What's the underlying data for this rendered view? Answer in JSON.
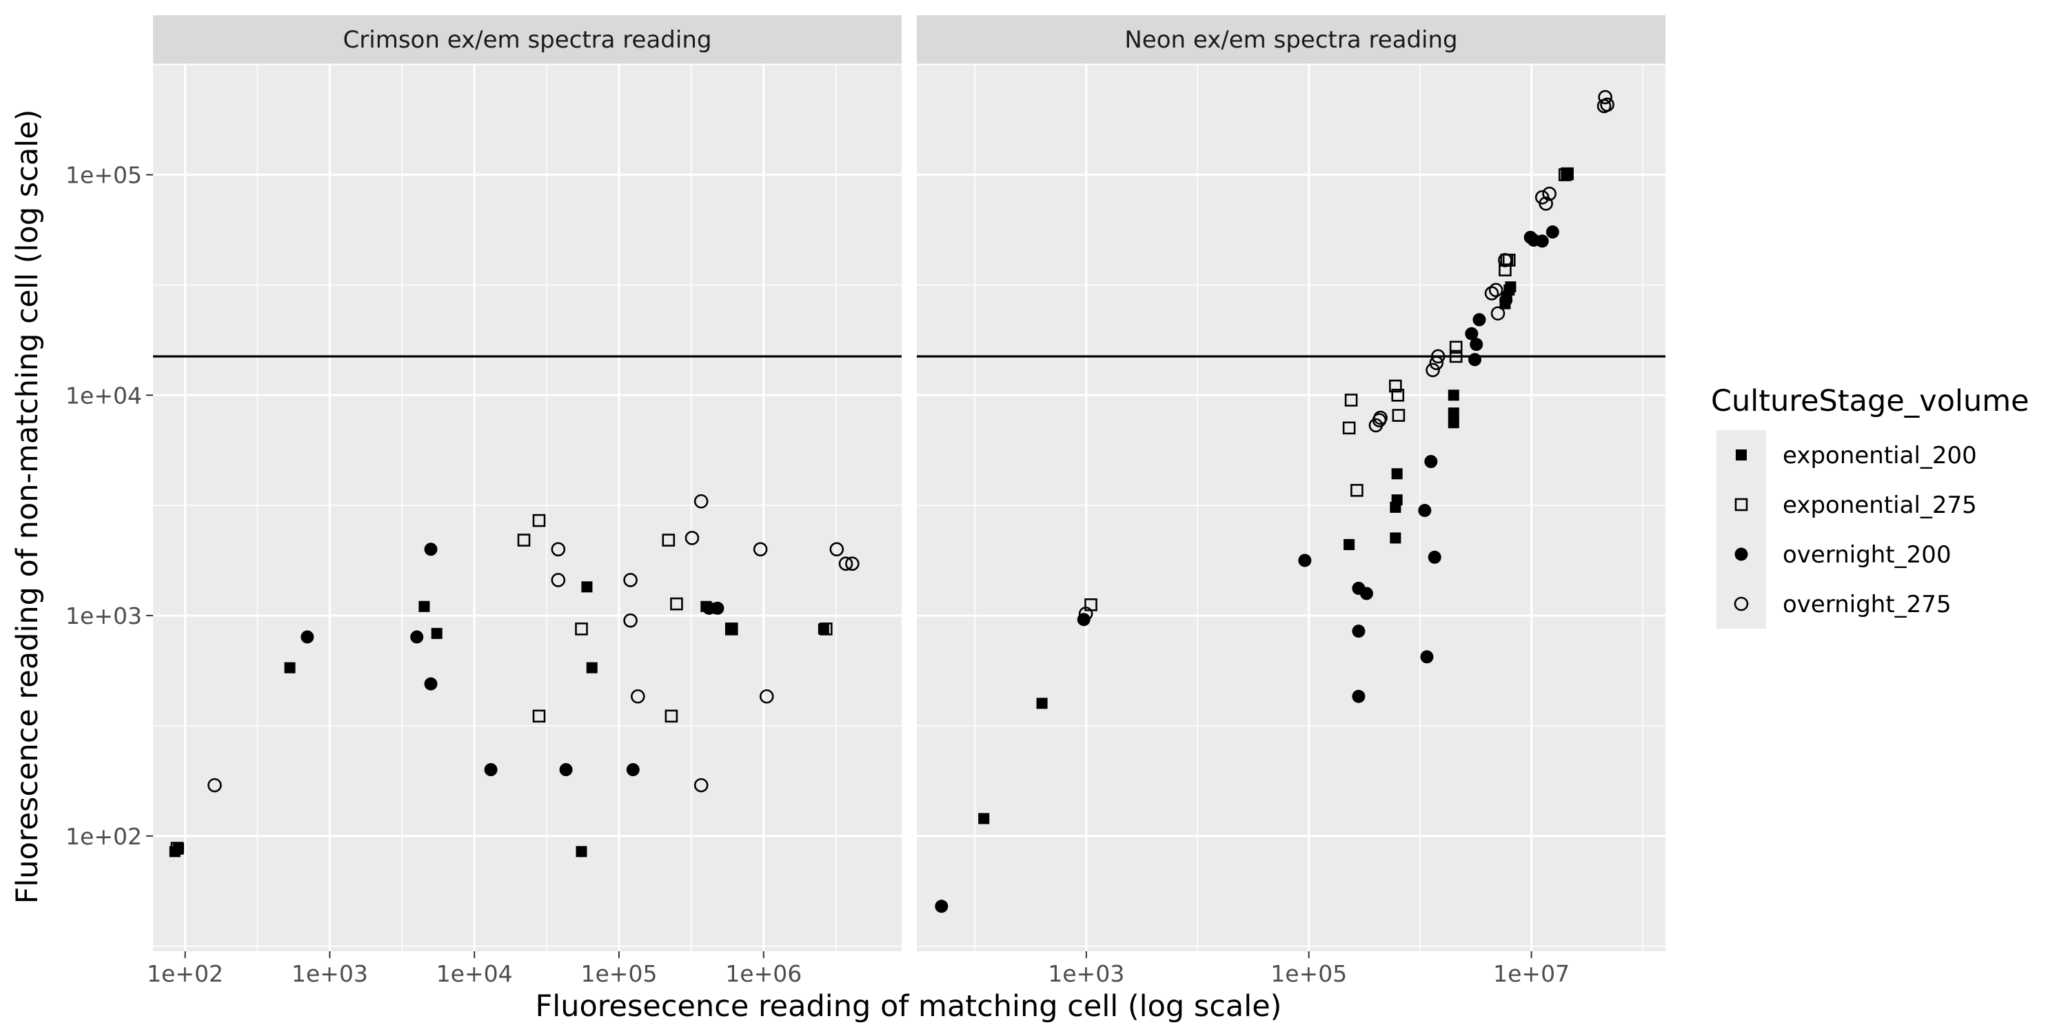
{
  "chart_data": {
    "type": "scatter",
    "xlabel": "Fluoresecence reading of matching cell (log scale)",
    "ylabel": "Fluorescence reading of non-matching cell (log scale)",
    "y_scale": "log10",
    "ylim": [
      30,
      320000
    ],
    "y_ticks": [
      100,
      1000,
      10000,
      100000
    ],
    "y_tick_labels": [
      "1e+02",
      "1e+03",
      "1e+04",
      "1e+05"
    ],
    "grid": true,
    "legend": {
      "title": "CultureStage_volume",
      "position": "right",
      "entries": [
        {
          "name": "exponential_200",
          "shape": "filled-square"
        },
        {
          "name": "exponential_275",
          "shape": "open-square"
        },
        {
          "name": "overnight_200",
          "shape": "filled-circle"
        },
        {
          "name": "overnight_275",
          "shape": "open-circle"
        }
      ]
    },
    "panels": [
      {
        "title": "Crimson ex/em spectra reading",
        "x_scale": "log10",
        "xlim": [
          60,
          9000000
        ],
        "x_ticks": [
          100,
          1000,
          10000,
          100000,
          1000000
        ],
        "x_tick_labels": [
          "1e+02",
          "1e+03",
          "1e+04",
          "1e+05",
          "1e+06"
        ],
        "hline": 15000,
        "series": [
          {
            "name": "exponential_200",
            "points": [
              [
                85,
                85
              ],
              [
                90,
                88
              ],
              [
                530,
                580
              ],
              [
                4500,
                1100
              ],
              [
                5500,
                830
              ],
              [
                55000,
                85
              ],
              [
                60000,
                1350
              ],
              [
                65000,
                580
              ],
              [
                400000,
                1100
              ],
              [
                450000,
                1080
              ],
              [
                600000,
                870
              ],
              [
                2600000,
                870
              ]
            ]
          },
          {
            "name": "exponential_275",
            "points": [
              [
                88,
                88
              ],
              [
                22000,
                2200
              ],
              [
                28000,
                2700
              ],
              [
                28000,
                350
              ],
              [
                55000,
                870
              ],
              [
                220000,
                2200
              ],
              [
                230000,
                350
              ],
              [
                250000,
                1130
              ],
              [
                600000,
                870
              ],
              [
                2700000,
                870
              ]
            ]
          },
          {
            "name": "overnight_200",
            "points": [
              [
                700,
                800
              ],
              [
                4000,
                800
              ],
              [
                5000,
                2000
              ],
              [
                5000,
                490
              ],
              [
                13000,
                200
              ],
              [
                43000,
                200
              ],
              [
                125000,
                200
              ],
              [
                420000,
                1080
              ],
              [
                480000,
                1080
              ]
            ]
          },
          {
            "name": "overnight_275",
            "points": [
              [
                160,
                170
              ],
              [
                38000,
                2000
              ],
              [
                38000,
                1450
              ],
              [
                120000,
                1450
              ],
              [
                120000,
                950
              ],
              [
                135000,
                430
              ],
              [
                320000,
                2250
              ],
              [
                370000,
                3300
              ],
              [
                370000,
                170
              ],
              [
                950000,
                2000
              ],
              [
                1050000,
                430
              ],
              [
                3200000,
                2000
              ],
              [
                3700000,
                1720
              ],
              [
                4100000,
                1720
              ]
            ]
          }
        ]
      },
      {
        "title": "Neon ex/em spectra reading",
        "x_scale": "log10",
        "xlim": [
          30,
          160000000
        ],
        "x_ticks": [
          1000,
          100000,
          10000000
        ],
        "x_tick_labels": [
          "1e+03",
          "1e+05",
          "1e+07"
        ],
        "hline": 15000,
        "series": [
          {
            "name": "exponential_200",
            "points": [
              [
                120,
                120
              ],
              [
                400,
                400
              ],
              [
                230000,
                2100
              ],
              [
                600000,
                2250
              ],
              [
                600000,
                3100
              ],
              [
                620000,
                3350
              ],
              [
                620000,
                4400
              ],
              [
                2000000,
                7500
              ],
              [
                2000000,
                8300
              ],
              [
                2000000,
                10000
              ],
              [
                5800000,
                26000
              ],
              [
                6000000,
                28000
              ],
              [
                6300000,
                30000
              ],
              [
                6500000,
                31000
              ],
              [
                21000000,
                100000
              ]
            ]
          },
          {
            "name": "exponential_275",
            "points": [
              [
                1100,
                1120
              ],
              [
                230000,
                7100
              ],
              [
                240000,
                9500
              ],
              [
                270000,
                3700
              ],
              [
                600000,
                11000
              ],
              [
                630000,
                10000
              ],
              [
                640000,
                8100
              ],
              [
                2100000,
                15000
              ],
              [
                2100000,
                16500
              ],
              [
                5800000,
                37000
              ],
              [
                6000000,
                41000
              ],
              [
                6300000,
                41000
              ],
              [
                20000000,
                100000
              ],
              [
                21000000,
                101000
              ]
            ]
          },
          {
            "name": "overnight_200",
            "points": [
              [
                50,
                48
              ],
              [
                950,
                960
              ],
              [
                92000,
                1780
              ],
              [
                280000,
                1330
              ],
              [
                280000,
                850
              ],
              [
                280000,
                430
              ],
              [
                330000,
                1260
              ],
              [
                1100000,
                3000
              ],
              [
                1150000,
                650
              ],
              [
                1250000,
                5000
              ],
              [
                1350000,
                1840
              ],
              [
                2900000,
                19000
              ],
              [
                3100000,
                14500
              ],
              [
                3200000,
                17000
              ],
              [
                3400000,
                22000
              ],
              [
                5900000,
                27000
              ],
              [
                9800000,
                52000
              ],
              [
                10500000,
                50500
              ],
              [
                12500000,
                50000
              ],
              [
                15500000,
                55000
              ]
            ]
          },
          {
            "name": "overnight_275",
            "points": [
              [
                990,
                1020
              ],
              [
                400000,
                7300
              ],
              [
                430000,
                7700
              ],
              [
                440000,
                7900
              ],
              [
                1300000,
                13000
              ],
              [
                1400000,
                14000
              ],
              [
                1450000,
                15000
              ],
              [
                4400000,
                29000
              ],
              [
                4800000,
                30000
              ],
              [
                5000000,
                23500
              ],
              [
                5800000,
                41000
              ],
              [
                12500000,
                79000
              ],
              [
                13500000,
                74000
              ],
              [
                14500000,
                82000
              ],
              [
                45000000,
                205000
              ],
              [
                46000000,
                225000
              ],
              [
                48000000,
                208000
              ]
            ]
          }
        ]
      }
    ]
  }
}
